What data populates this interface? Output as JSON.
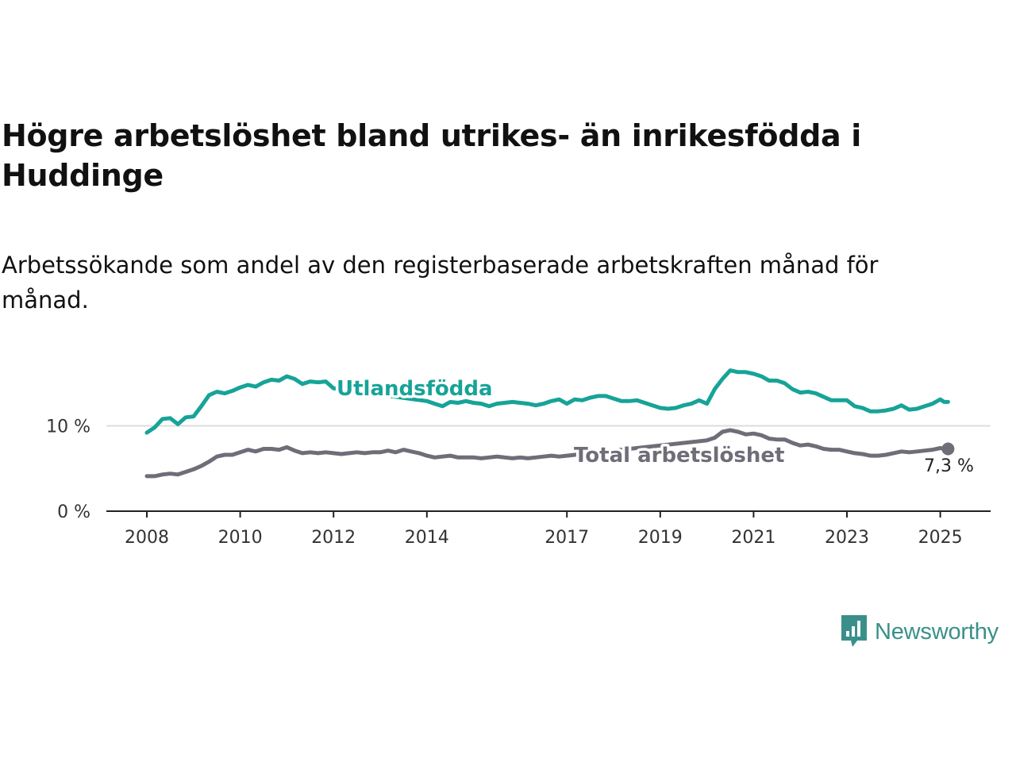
{
  "title": "Högre arbetslöshet bland utrikes- än inrikesfödda i Huddinge",
  "subtitle": "Arbetssökande som andel av den registerbaserade arbetskraften månad för månad.",
  "logo": {
    "text": "Newsworthy",
    "icon": "newsworthy-bar-chart-icon",
    "color": "#3a8f8a"
  },
  "colors": {
    "utlandsfodda": "#17a398",
    "total": "#6e6d78",
    "grid": "#dddddd",
    "axis": "#222222"
  },
  "chart_data": {
    "type": "line",
    "title": "Högre arbetslöshet bland utrikes- än inrikesfödda i Huddinge",
    "subtitle": "Arbetssökande som andel av den registerbaserade arbetskraften månad för månad.",
    "xlabel": "",
    "ylabel": "",
    "xlim": [
      "2008-01",
      "2025-04"
    ],
    "ylim": [
      0,
      16.5
    ],
    "x_ticks": [
      "2008",
      "2010",
      "2012",
      "2014",
      "2017",
      "2019",
      "2021",
      "2023",
      "2025"
    ],
    "y_ticks": [
      {
        "value": 0,
        "label": "0 %"
      },
      {
        "value": 10,
        "label": "10 %"
      }
    ],
    "grid": "horizontal",
    "series": [
      {
        "name": "Utlandsfödda",
        "label_position": "inline",
        "points": [
          [
            "2008-01",
            9.2
          ],
          [
            "2008-03",
            9.8
          ],
          [
            "2008-05",
            10.8
          ],
          [
            "2008-07",
            10.9
          ],
          [
            "2008-09",
            10.2
          ],
          [
            "2008-11",
            11.0
          ],
          [
            "2009-01",
            11.1
          ],
          [
            "2009-03",
            12.3
          ],
          [
            "2009-05",
            13.6
          ],
          [
            "2009-07",
            14.0
          ],
          [
            "2009-09",
            13.8
          ],
          [
            "2009-11",
            14.1
          ],
          [
            "2010-01",
            14.5
          ],
          [
            "2010-03",
            14.8
          ],
          [
            "2010-05",
            14.6
          ],
          [
            "2010-07",
            15.1
          ],
          [
            "2010-09",
            15.4
          ],
          [
            "2010-11",
            15.3
          ],
          [
            "2011-01",
            15.8
          ],
          [
            "2011-03",
            15.5
          ],
          [
            "2011-05",
            14.9
          ],
          [
            "2011-07",
            15.2
          ],
          [
            "2011-09",
            15.1
          ],
          [
            "2011-11",
            15.2
          ],
          [
            "2012-01",
            14.4
          ],
          [
            "2014-01",
            12.9
          ],
          [
            "2014-03",
            12.6
          ],
          [
            "2014-05",
            12.3
          ],
          [
            "2014-07",
            12.8
          ],
          [
            "2014-09",
            12.7
          ],
          [
            "2014-11",
            12.9
          ],
          [
            "2015-01",
            12.7
          ],
          [
            "2015-03",
            12.6
          ],
          [
            "2015-05",
            12.3
          ],
          [
            "2015-07",
            12.6
          ],
          [
            "2015-09",
            12.7
          ],
          [
            "2015-11",
            12.8
          ],
          [
            "2016-01",
            12.7
          ],
          [
            "2016-03",
            12.6
          ],
          [
            "2016-05",
            12.4
          ],
          [
            "2016-07",
            12.6
          ],
          [
            "2016-09",
            12.9
          ],
          [
            "2016-11",
            13.1
          ],
          [
            "2017-01",
            12.6
          ],
          [
            "2017-03",
            13.1
          ],
          [
            "2017-05",
            13.0
          ],
          [
            "2017-07",
            13.3
          ],
          [
            "2017-09",
            13.5
          ],
          [
            "2017-11",
            13.5
          ],
          [
            "2018-01",
            13.2
          ],
          [
            "2018-03",
            12.9
          ],
          [
            "2018-05",
            12.9
          ],
          [
            "2018-07",
            13.0
          ],
          [
            "2018-09",
            12.7
          ],
          [
            "2018-11",
            12.4
          ],
          [
            "2019-01",
            12.1
          ],
          [
            "2019-03",
            12.0
          ],
          [
            "2019-05",
            12.1
          ],
          [
            "2019-07",
            12.4
          ],
          [
            "2019-09",
            12.6
          ],
          [
            "2019-11",
            13.0
          ],
          [
            "2020-01",
            12.6
          ],
          [
            "2020-03",
            14.3
          ],
          [
            "2020-05",
            15.5
          ],
          [
            "2020-07",
            16.5
          ],
          [
            "2020-09",
            16.3
          ],
          [
            "2020-11",
            16.3
          ],
          [
            "2021-01",
            16.1
          ],
          [
            "2021-03",
            15.8
          ],
          [
            "2021-05",
            15.3
          ],
          [
            "2021-07",
            15.3
          ],
          [
            "2021-09",
            15.0
          ],
          [
            "2021-11",
            14.3
          ],
          [
            "2022-01",
            13.9
          ],
          [
            "2022-03",
            14.0
          ],
          [
            "2022-05",
            13.8
          ],
          [
            "2022-07",
            13.4
          ],
          [
            "2022-09",
            13.0
          ],
          [
            "2022-11",
            13.0
          ],
          [
            "2023-01",
            13.0
          ],
          [
            "2023-03",
            12.3
          ],
          [
            "2023-05",
            12.1
          ],
          [
            "2023-07",
            11.7
          ],
          [
            "2023-09",
            11.7
          ],
          [
            "2023-11",
            11.8
          ],
          [
            "2024-01",
            12.0
          ],
          [
            "2024-03",
            12.4
          ],
          [
            "2024-05",
            11.9
          ],
          [
            "2024-07",
            12.0
          ],
          [
            "2024-09",
            12.3
          ],
          [
            "2024-11",
            12.6
          ],
          [
            "2025-01",
            13.1
          ],
          [
            "2025-02",
            12.8
          ],
          [
            "2025-03",
            12.8
          ]
        ]
      },
      {
        "name": "Total arbetslöshet",
        "label_position": "inline",
        "last_value_label": "7,3 %",
        "points": [
          [
            "2008-01",
            4.1
          ],
          [
            "2008-03",
            4.1
          ],
          [
            "2008-05",
            4.3
          ],
          [
            "2008-07",
            4.4
          ],
          [
            "2008-09",
            4.3
          ],
          [
            "2008-11",
            4.6
          ],
          [
            "2009-01",
            4.9
          ],
          [
            "2009-03",
            5.3
          ],
          [
            "2009-05",
            5.8
          ],
          [
            "2009-07",
            6.4
          ],
          [
            "2009-09",
            6.6
          ],
          [
            "2009-11",
            6.6
          ],
          [
            "2010-01",
            6.9
          ],
          [
            "2010-03",
            7.2
          ],
          [
            "2010-05",
            7.0
          ],
          [
            "2010-07",
            7.3
          ],
          [
            "2010-09",
            7.3
          ],
          [
            "2010-11",
            7.2
          ],
          [
            "2011-01",
            7.5
          ],
          [
            "2011-03",
            7.1
          ],
          [
            "2011-05",
            6.8
          ],
          [
            "2011-07",
            6.9
          ],
          [
            "2011-09",
            6.8
          ],
          [
            "2011-11",
            6.9
          ],
          [
            "2012-01",
            6.8
          ],
          [
            "2012-03",
            6.7
          ],
          [
            "2012-05",
            6.8
          ],
          [
            "2012-07",
            6.9
          ],
          [
            "2012-09",
            6.8
          ],
          [
            "2012-11",
            6.9
          ],
          [
            "2013-01",
            6.9
          ],
          [
            "2013-03",
            7.1
          ],
          [
            "2013-05",
            6.9
          ],
          [
            "2013-07",
            7.2
          ],
          [
            "2013-09",
            7.0
          ],
          [
            "2013-11",
            6.8
          ],
          [
            "2014-01",
            6.5
          ],
          [
            "2014-03",
            6.3
          ],
          [
            "2014-05",
            6.4
          ],
          [
            "2014-07",
            6.5
          ],
          [
            "2014-09",
            6.3
          ],
          [
            "2014-11",
            6.3
          ],
          [
            "2015-01",
            6.3
          ],
          [
            "2015-03",
            6.2
          ],
          [
            "2015-05",
            6.3
          ],
          [
            "2015-07",
            6.4
          ],
          [
            "2015-09",
            6.3
          ],
          [
            "2015-11",
            6.2
          ],
          [
            "2016-01",
            6.3
          ],
          [
            "2016-03",
            6.2
          ],
          [
            "2016-05",
            6.3
          ],
          [
            "2016-07",
            6.4
          ],
          [
            "2016-09",
            6.5
          ],
          [
            "2016-11",
            6.4
          ],
          [
            "2017-01",
            6.5
          ],
          [
            "2020-01",
            8.3
          ],
          [
            "2020-03",
            8.6
          ],
          [
            "2020-05",
            9.3
          ],
          [
            "2020-07",
            9.5
          ],
          [
            "2020-09",
            9.3
          ],
          [
            "2020-11",
            9.0
          ],
          [
            "2021-01",
            9.1
          ],
          [
            "2021-03",
            8.9
          ],
          [
            "2021-05",
            8.5
          ],
          [
            "2021-07",
            8.4
          ],
          [
            "2021-09",
            8.4
          ],
          [
            "2021-11",
            8.0
          ],
          [
            "2022-01",
            7.7
          ],
          [
            "2022-03",
            7.8
          ],
          [
            "2022-05",
            7.6
          ],
          [
            "2022-07",
            7.3
          ],
          [
            "2022-09",
            7.2
          ],
          [
            "2022-11",
            7.2
          ],
          [
            "2023-01",
            7.0
          ],
          [
            "2023-03",
            6.8
          ],
          [
            "2023-05",
            6.7
          ],
          [
            "2023-07",
            6.5
          ],
          [
            "2023-09",
            6.5
          ],
          [
            "2023-11",
            6.6
          ],
          [
            "2024-01",
            6.8
          ],
          [
            "2024-03",
            7.0
          ],
          [
            "2024-05",
            6.9
          ],
          [
            "2024-07",
            7.0
          ],
          [
            "2024-09",
            7.1
          ],
          [
            "2024-11",
            7.2
          ],
          [
            "2025-01",
            7.4
          ],
          [
            "2025-02",
            7.3
          ],
          [
            "2025-03",
            7.3
          ]
        ]
      }
    ]
  }
}
